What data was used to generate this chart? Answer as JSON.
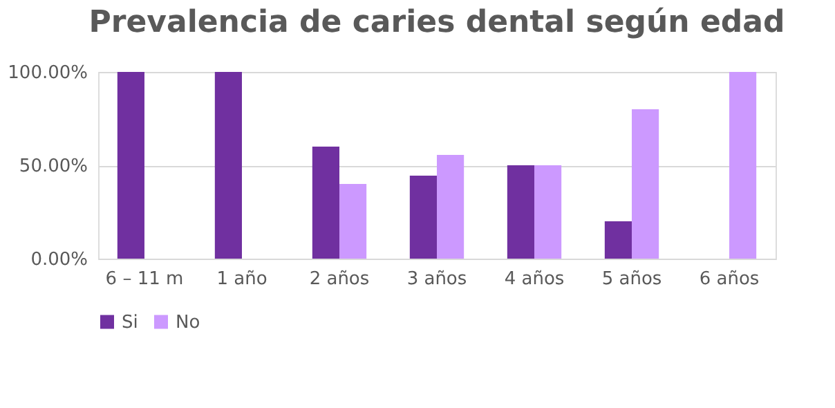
{
  "chart_data": {
    "type": "bar",
    "title": "Prevalencia de caries dental según edad",
    "categories": [
      "6 – 11 m",
      "1 año",
      "2 años",
      "3 años",
      "4 años",
      "5 años",
      "6 años"
    ],
    "series": [
      {
        "name": "Si",
        "color": "#7030a0",
        "values": [
          100,
          100,
          60,
          44.4,
          50,
          20,
          0
        ]
      },
      {
        "name": "No",
        "color": "#cc99ff",
        "values": [
          0,
          0,
          40,
          55.6,
          50,
          80,
          100
        ]
      }
    ],
    "ylim": [
      0,
      100
    ],
    "yticks": [
      {
        "value": 0,
        "label": "0.00%"
      },
      {
        "value": 50,
        "label": "50.00%"
      },
      {
        "value": 100,
        "label": "100.00%"
      }
    ],
    "grid": "y",
    "legend": "bottom"
  }
}
